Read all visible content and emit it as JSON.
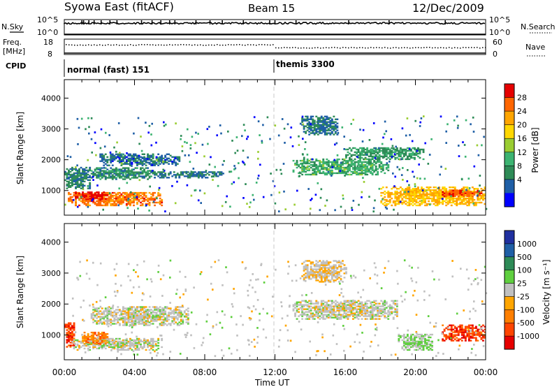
{
  "header": {
    "station": "Syowa East (fitACF)",
    "beam": "Beam 15",
    "date": "12/Dec/2009"
  },
  "panels": {
    "nsky_label": "N.Sky",
    "nsearch_label": "N.Search",
    "nsky_ticks": [
      "10^5",
      "10^0"
    ],
    "nsearch_ticks": [
      "10^5",
      "10^0"
    ],
    "freq_label_1": "Freq.",
    "freq_label_2": "[MHz]",
    "freq_ticks": [
      "18",
      "8"
    ],
    "nave_label": "Nave",
    "nave_ticks": [
      "60",
      "0"
    ],
    "cpid_label": "CPID",
    "cpid_segments": [
      "normal (fast) 151",
      "themis 3300"
    ]
  },
  "axes": {
    "ylabel": "Slant Range [km]",
    "xlabel": "Time UT",
    "xticks": [
      "00:00",
      "04:00",
      "08:00",
      "12:00",
      "16:00",
      "20:00",
      "00:00"
    ],
    "yticks": [
      "1000",
      "2000",
      "3000",
      "4000"
    ]
  },
  "colorbars": {
    "power": {
      "label": "Power [dB]",
      "ticks": [
        "28",
        "24",
        "20",
        "16",
        "12",
        "8",
        "4"
      ],
      "colors": [
        "#e60000",
        "#ff6600",
        "#ffa500",
        "#ffd700",
        "#9acd32",
        "#3cb371",
        "#2e8b57",
        "#1f5fa6",
        "#0000ff"
      ]
    },
    "velocity": {
      "label": "Velocity [m s⁻¹]",
      "ticks": [
        "1000",
        "500",
        "100",
        "25",
        "-25",
        "-100",
        "-500",
        "-1000"
      ],
      "colors": [
        "#2030a0",
        "#1f5fa6",
        "#2e8b57",
        "#5fcf3f",
        "#c0c0c0",
        "#ffa500",
        "#ff7f00",
        "#ff4500",
        "#e60000"
      ]
    }
  },
  "chart_data": [
    {
      "type": "heatmap",
      "title": "Power",
      "xlabel": "Time UT",
      "ylabel": "Slant Range [km]",
      "xlim": [
        0,
        24
      ],
      "ylim": [
        200,
        4600
      ],
      "clabel": "Power [dB]",
      "clim": [
        0,
        32
      ],
      "blobs": [
        {
          "t0": 0.0,
          "t1": 1.5,
          "r0": 1050,
          "r1": 1750,
          "v": 8
        },
        {
          "t0": 0.2,
          "t1": 5.5,
          "r0": 500,
          "r1": 950,
          "v": 26
        },
        {
          "t0": 0.5,
          "t1": 2.5,
          "r0": 700,
          "r1": 950,
          "v": 30
        },
        {
          "t0": 1.5,
          "t1": 5.0,
          "r0": 1350,
          "r1": 1750,
          "v": 9
        },
        {
          "t0": 2.0,
          "t1": 6.5,
          "r0": 1800,
          "r1": 2200,
          "v": 6
        },
        {
          "t0": 5.0,
          "t1": 9.0,
          "r0": 1400,
          "r1": 1600,
          "v": 7
        },
        {
          "t0": 13.0,
          "t1": 18.5,
          "r0": 1500,
          "r1": 2000,
          "v": 12
        },
        {
          "t0": 13.5,
          "t1": 15.5,
          "r0": 2800,
          "r1": 3400,
          "v": 7
        },
        {
          "t0": 16.0,
          "t1": 20.5,
          "r0": 2000,
          "r1": 2400,
          "v": 10
        },
        {
          "t0": 18.0,
          "t1": 24.0,
          "r0": 500,
          "r1": 1100,
          "v": 22
        },
        {
          "t0": 21.5,
          "t1": 23.8,
          "r0": 800,
          "r1": 1000,
          "v": 28
        }
      ]
    },
    {
      "type": "heatmap",
      "title": "Velocity",
      "xlabel": "Time UT",
      "ylabel": "Slant Range [km]",
      "xlim": [
        0,
        24
      ],
      "ylim": [
        200,
        4600
      ],
      "clabel": "Velocity [m s⁻¹]",
      "clim": [
        -1000,
        1000
      ],
      "blobs": [
        {
          "t0": 0.0,
          "t1": 0.6,
          "r0": 600,
          "r1": 1400,
          "v": -700
        },
        {
          "t0": 0.5,
          "t1": 5.5,
          "r0": 500,
          "r1": 900,
          "v": 0
        },
        {
          "t0": 1.0,
          "t1": 2.5,
          "r0": 700,
          "r1": 1100,
          "v": -450
        },
        {
          "t0": 1.5,
          "t1": 7.0,
          "r0": 1300,
          "r1": 1900,
          "v": 0
        },
        {
          "t0": 13.0,
          "t1": 19.0,
          "r0": 1500,
          "r1": 2100,
          "v": 0
        },
        {
          "t0": 13.5,
          "t1": 16.0,
          "r0": 2700,
          "r1": 3400,
          "v": -80
        },
        {
          "t0": 19.0,
          "t1": 21.0,
          "r0": 500,
          "r1": 1000,
          "v": 120
        },
        {
          "t0": 21.5,
          "t1": 24.0,
          "r0": 800,
          "r1": 1300,
          "v": -700
        }
      ]
    }
  ]
}
